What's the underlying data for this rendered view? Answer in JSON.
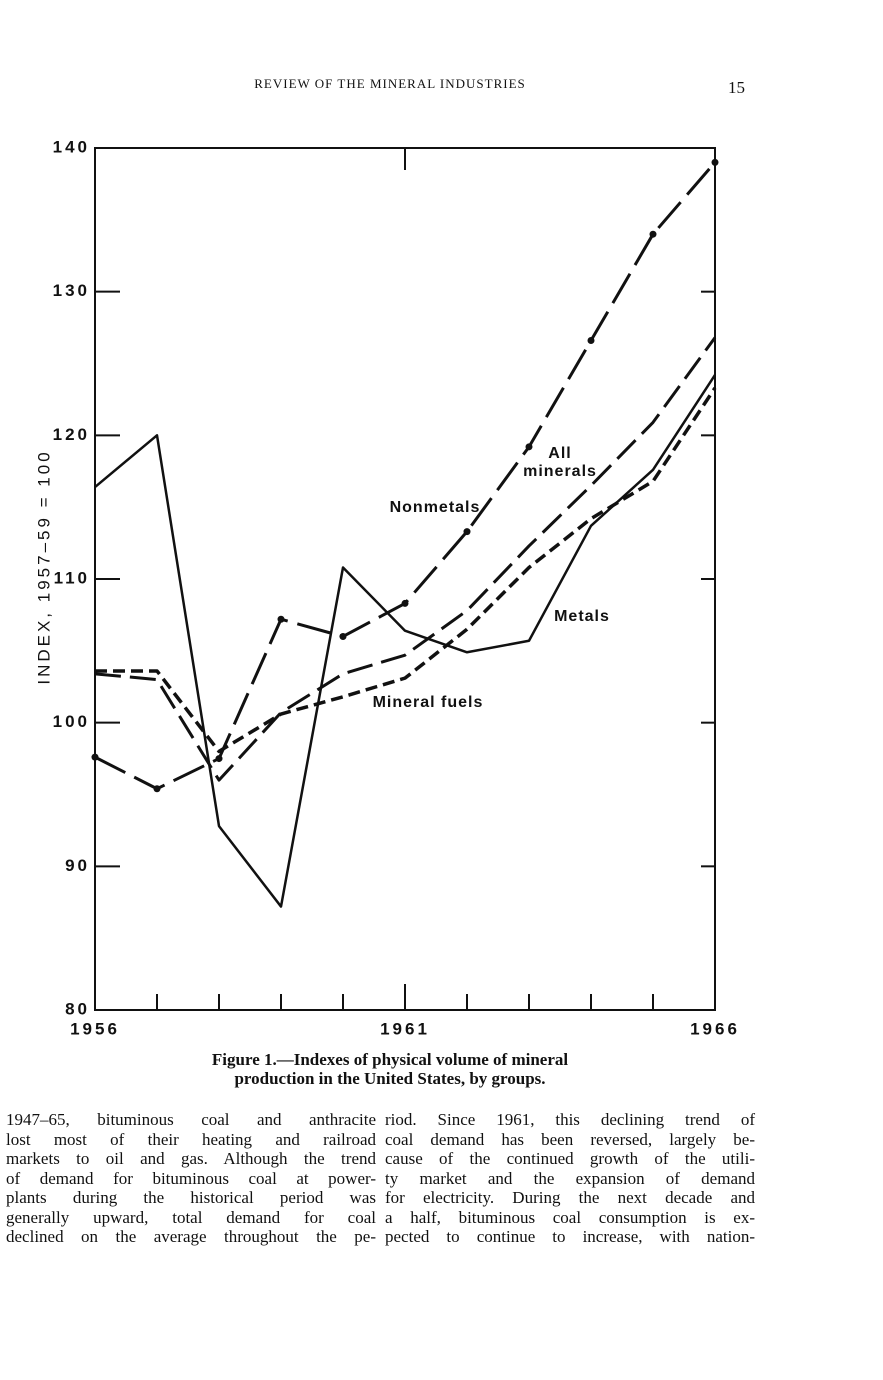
{
  "header": {
    "title": "REVIEW OF THE MINERAL INDUSTRIES",
    "page_number": "15"
  },
  "chart_data": {
    "type": "line",
    "y_label": "INDEX, 1957–59 = 100",
    "x": [
      1956,
      1957,
      1958,
      1959,
      1960,
      1961,
      1962,
      1963,
      1964,
      1965,
      1966
    ],
    "xlim": [
      1956,
      1966
    ],
    "xticks": [
      1956,
      1961,
      1966
    ],
    "ylim": [
      80,
      140
    ],
    "yticks": [
      80,
      90,
      100,
      110,
      120,
      130,
      140
    ],
    "series": [
      {
        "name": "Metals",
        "color": "#111111",
        "line_style": "solid",
        "values": [
          116.4,
          120,
          92.8,
          87.2,
          110.8,
          106.4,
          104.9,
          105.7,
          113.7,
          117.6,
          124.2
        ]
      },
      {
        "name": "Nonmetals",
        "color": "#111111",
        "line_style": "dash-dot",
        "values": [
          97.6,
          95.4,
          97.5,
          107.2,
          106,
          108.3,
          113.3,
          119.2,
          126.6,
          134,
          139
        ]
      },
      {
        "name": "All minerals",
        "color": "#111111",
        "line_style": "long-dash",
        "values": [
          103.4,
          103,
          96,
          100.7,
          103.4,
          104.7,
          107.8,
          112.3,
          116.5,
          120.9,
          126.8
        ]
      },
      {
        "name": "Mineral fuels",
        "color": "#111111",
        "line_style": "short-dash",
        "values": [
          103.6,
          103.6,
          98,
          100.6,
          101.8,
          103.1,
          106.5,
          110.8,
          114.2,
          116.8,
          123.3
        ]
      }
    ]
  },
  "caption": [
    "Figure 1.—Indexes of physical volume of mineral",
    "production in the United States, by groups."
  ],
  "body": {
    "columns": [
      [
        "1947–65, bituminous coal and anthracite",
        "lost most of their heating and railroad",
        "markets to oil and gas. Although the trend",
        "of demand for bituminous coal at power-",
        "plants during the historical period was",
        "generally upward, total demand for coal",
        "declined on the average throughout the pe-"
      ],
      [
        "riod. Since 1961, this declining trend of",
        "coal demand has been reversed, largely be-",
        "cause of the continued growth of the utili-",
        "ty market and the expansion of demand",
        "for electricity. During the next decade and",
        "a half, bituminous coal consumption is ex-",
        "pected to continue to increase, with nation-"
      ]
    ]
  }
}
